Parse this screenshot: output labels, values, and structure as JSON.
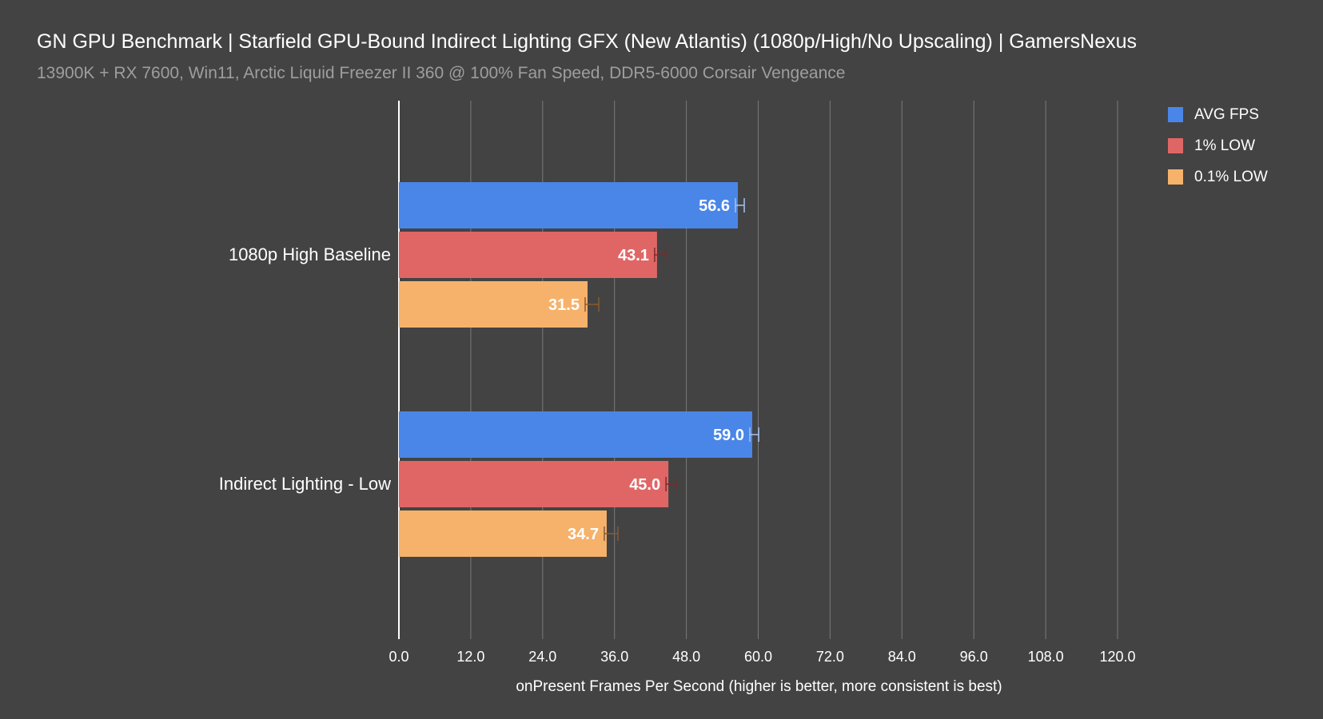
{
  "title": "GN GPU Benchmark | Starfield GPU-Bound Indirect Lighting GFX (New Atlantis) (1080p/High/No Upscaling) | GamersNexus",
  "subtitle": "13900K + RX 7600, Win11, Arctic Liquid Freezer II 360 @ 100% Fan Speed, DDR5-6000 Corsair Vengeance",
  "colors": {
    "background": "#434343",
    "grid": "#7a7a7a",
    "axis": "#ffffff",
    "avg": "#4a86e8",
    "low1": "#e06666",
    "low01": "#f6b26b",
    "error_bar_avg": "#a4c2f4",
    "error_bar_low1": "#7a2a2a",
    "error_bar_low01": "#8a5a30"
  },
  "chart_data": {
    "type": "bar",
    "orientation": "horizontal",
    "title": "GN GPU Benchmark | Starfield GPU-Bound Indirect Lighting GFX (New Atlantis) (1080p/High/No Upscaling) | GamersNexus",
    "subtitle": "13900K + RX 7600, Win11, Arctic Liquid Freezer II 360 @ 100% Fan Speed, DDR5-6000 Corsair Vengeance",
    "xlabel": "onPresent Frames Per Second (higher is better, more consistent is best)",
    "ylabel": "",
    "xlim": [
      0,
      120
    ],
    "ticks": [
      "0.0",
      "12.0",
      "24.0",
      "36.0",
      "48.0",
      "60.0",
      "72.0",
      "84.0",
      "96.0",
      "108.0",
      "120.0"
    ],
    "grid": "vertical",
    "legend_position": "top-right",
    "categories": [
      "1080p High Baseline",
      "Indirect Lighting - Low"
    ],
    "series": [
      {
        "name": "AVG FPS",
        "color": "#4a86e8",
        "values": [
          56.6,
          59.0
        ],
        "labels": [
          "56.6",
          "59.0"
        ]
      },
      {
        "name": "1% LOW",
        "color": "#e06666",
        "values": [
          43.1,
          45.0
        ],
        "labels": [
          "43.1",
          "45.0"
        ]
      },
      {
        "name": "0.1% LOW",
        "color": "#f6b26b",
        "values": [
          31.5,
          34.7
        ],
        "labels": [
          "31.5",
          "34.7"
        ]
      }
    ]
  }
}
